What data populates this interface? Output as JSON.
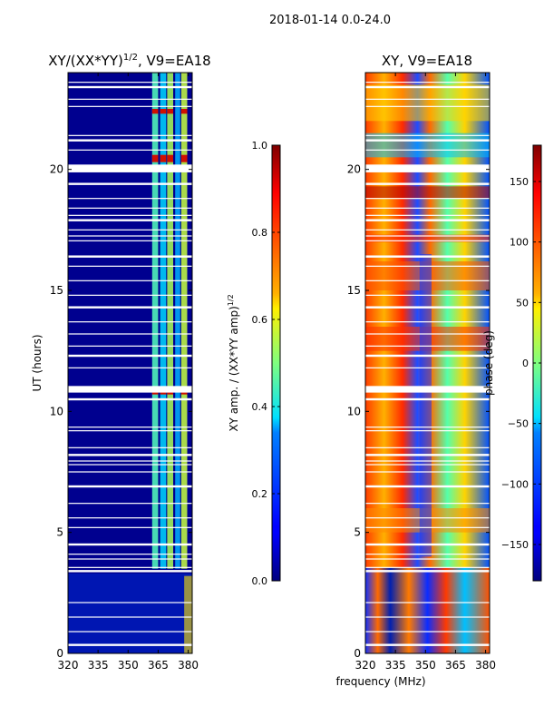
{
  "figure": {
    "suptitle": "2018-01-14 0.0-24.0",
    "shared_xlabel": "frequency (MHz)"
  },
  "chart_data": [
    {
      "type": "heatmap",
      "title": "XY/(XX*YY)^{1/2}, V9=EA18",
      "title_main": "XY/(XX*YY)",
      "title_exp": "1/2",
      "title_suffix": ", V9=EA18",
      "xlabel": "frequency (MHz)",
      "ylabel": "UT (hours)",
      "xlim": [
        320,
        382
      ],
      "ylim": [
        0,
        24
      ],
      "xticks": [
        320,
        335,
        350,
        365,
        380
      ],
      "yticks": [
        0,
        5,
        10,
        15,
        20
      ],
      "colorbar": {
        "label": "XY amp. / (XX*YY amp)^{1/2}",
        "label_main": "XY amp. / (XX*YY amp)",
        "label_exp": "1/2",
        "range": [
          0.0,
          1.0
        ],
        "ticks": [
          "0.0",
          "0.2",
          "0.4",
          "0.6",
          "0.8",
          "1.0"
        ],
        "colormap": "jet"
      }
    },
    {
      "type": "heatmap",
      "title": "XY, V9=EA18",
      "xlabel": "frequency (MHz)",
      "ylabel": "",
      "xlim": [
        320,
        382
      ],
      "ylim": [
        0,
        24
      ],
      "xticks": [
        320,
        335,
        350,
        365,
        380
      ],
      "yticks": [
        0,
        5,
        10,
        15,
        20
      ],
      "colorbar": {
        "label": "phase (deg)",
        "range": [
          -180,
          180
        ],
        "ticks": [
          "−150",
          "−100",
          "−50",
          "0",
          "50",
          "100",
          "150"
        ],
        "tick_values": [
          -150,
          -100,
          -50,
          0,
          50,
          100,
          150
        ],
        "colormap": "jet"
      }
    }
  ]
}
